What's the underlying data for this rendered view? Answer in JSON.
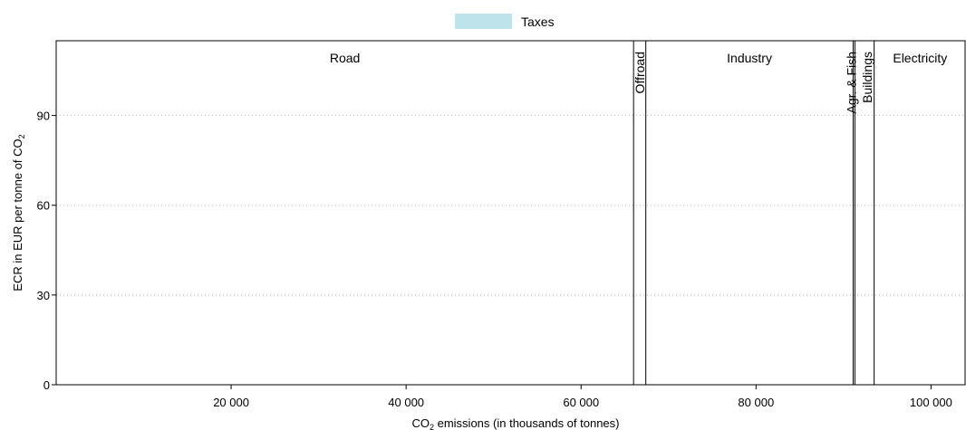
{
  "chart_data": {
    "type": "bar",
    "legend": {
      "position": "top-center",
      "entries": [
        {
          "name": "Taxes",
          "color": "#bfe3ea"
        }
      ]
    },
    "x_axis": {
      "label_prefix": "CO",
      "label_sub": "2",
      "label_suffix": " emissions (in thousands of tonnes)",
      "range": [
        0,
        104000
      ],
      "ticks": [
        {
          "value": 20000,
          "label": "20 000"
        },
        {
          "value": 40000,
          "label": "40 000"
        },
        {
          "value": 60000,
          "label": "60 000"
        },
        {
          "value": 80000,
          "label": "80 000"
        },
        {
          "value": 100000,
          "label": "100 000"
        }
      ]
    },
    "y_axis": {
      "label_prefix": "ECR in EUR per tonne of CO",
      "label_sub": "2",
      "range": [
        0,
        115
      ],
      "grid": true,
      "ticks": [
        {
          "value": 0,
          "label": "0"
        },
        {
          "value": 30,
          "label": "30"
        },
        {
          "value": 60,
          "label": "60"
        },
        {
          "value": 90,
          "label": "90"
        }
      ]
    },
    "sectors": [
      {
        "name": "Road",
        "start": 0,
        "end": 66000,
        "orientation": "horizontal",
        "tax": 0
      },
      {
        "name": "Offroad",
        "start": 66000,
        "end": 67400,
        "orientation": "vertical",
        "tax": 0
      },
      {
        "name": "Industry",
        "start": 67400,
        "end": 91100,
        "orientation": "horizontal",
        "tax": 0
      },
      {
        "name": "Agr. & Fish",
        "start": 91100,
        "end": 91300,
        "orientation": "vertical",
        "tax": 0
      },
      {
        "name": "Buildings",
        "start": 91300,
        "end": 93500,
        "orientation": "vertical",
        "tax": 0
      },
      {
        "name": "Electricity",
        "start": 93500,
        "end": 104000,
        "orientation": "horizontal",
        "tax": 0
      }
    ]
  }
}
